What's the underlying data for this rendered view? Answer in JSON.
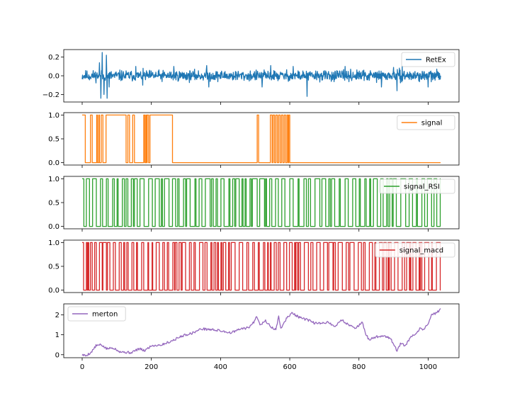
{
  "chart_data": [
    {
      "type": "line",
      "legend": "RetEx",
      "legend_placement": "upper right",
      "color": "#1f77b4",
      "series": [
        {
          "name": "RetEx",
          "kind": "noise",
          "seed": 11,
          "base": 0.0,
          "amp": 0.035,
          "spikes": [
            [
              50,
              0.14
            ],
            [
              54,
              -0.24
            ],
            [
              58,
              0.25
            ],
            [
              63,
              -0.2
            ],
            [
              70,
              0.22
            ],
            [
              72,
              -0.24
            ],
            [
              78,
              -0.12
            ],
            [
              155,
              0.1
            ],
            [
              175,
              -0.1
            ],
            [
              265,
              0.1
            ],
            [
              360,
              0.11
            ],
            [
              366,
              -0.12
            ],
            [
              520,
              -0.12
            ],
            [
              545,
              0.11
            ],
            [
              610,
              0.1
            ],
            [
              650,
              -0.22
            ],
            [
              760,
              0.1
            ],
            [
              865,
              -0.12
            ],
            [
              900,
              0.09
            ],
            [
              910,
              -0.16
            ],
            [
              925,
              0.1
            ],
            [
              1000,
              -0.12
            ]
          ]
        }
      ],
      "xlim": [
        0,
        1036
      ],
      "ylim": [
        -0.28,
        0.28
      ],
      "yticks": [
        -0.2,
        0.0,
        0.2
      ],
      "ytick_labels": [
        "−0.2",
        "0.0",
        "0.2"
      ],
      "xtick_labels_shown": false
    },
    {
      "type": "line",
      "legend": "signal",
      "legend_placement": "upper right",
      "color": "#ff7f0e",
      "series": [
        {
          "name": "signal",
          "kind": "step",
          "transitions": [
            [
              0,
              1
            ],
            [
              9,
              0
            ],
            [
              24,
              1
            ],
            [
              29,
              0
            ],
            [
              42,
              1
            ],
            [
              44,
              0
            ],
            [
              48,
              1
            ],
            [
              50,
              0
            ],
            [
              55,
              1
            ],
            [
              60,
              0
            ],
            [
              69,
              1
            ],
            [
              127,
              0
            ],
            [
              132,
              1
            ],
            [
              137,
              0
            ],
            [
              146,
              1
            ],
            [
              151,
              0
            ],
            [
              178,
              1
            ],
            [
              181,
              0
            ],
            [
              184,
              1
            ],
            [
              186,
              0
            ],
            [
              188,
              1
            ],
            [
              192,
              0
            ],
            [
              196,
              1
            ],
            [
              261,
              0
            ],
            [
              506,
              1
            ],
            [
              510,
              0
            ],
            [
              544,
              1
            ],
            [
              549,
              0
            ],
            [
              552,
              1
            ],
            [
              556,
              0
            ],
            [
              560,
              1
            ],
            [
              564,
              0
            ],
            [
              568,
              1
            ],
            [
              572,
              0
            ],
            [
              576,
              1
            ],
            [
              580,
              0
            ],
            [
              584,
              1
            ],
            [
              588,
              0
            ],
            [
              592,
              1
            ],
            [
              595,
              0
            ],
            [
              597,
              1
            ],
            [
              600,
              0
            ]
          ]
        }
      ],
      "xlim": [
        0,
        1036
      ],
      "ylim": [
        -0.05,
        1.05
      ],
      "yticks": [
        0.0,
        0.5,
        1.0
      ],
      "ytick_labels": [
        "0.0",
        "0.5",
        "1.0"
      ],
      "xtick_labels_shown": false
    },
    {
      "type": "line",
      "legend": "signal_RSI",
      "legend_placement": "upper right",
      "color": "#2ca02c",
      "series": [
        {
          "name": "signal_RSI",
          "kind": "binary",
          "seed": 23,
          "minrun": 3,
          "maxrun": 14
        }
      ],
      "xlim": [
        0,
        1036
      ],
      "ylim": [
        -0.05,
        1.05
      ],
      "yticks": [
        0.0,
        0.5,
        1.0
      ],
      "ytick_labels": [
        "0.0",
        "0.5",
        "1.0"
      ],
      "xtick_labels_shown": false
    },
    {
      "type": "line",
      "legend": "signal_macd",
      "legend_placement": "upper right",
      "color": "#d62728",
      "series": [
        {
          "name": "signal_macd",
          "kind": "binary",
          "seed": 37,
          "minrun": 2,
          "maxrun": 12
        }
      ],
      "xlim": [
        0,
        1036
      ],
      "ylim": [
        -0.05,
        1.05
      ],
      "yticks": [
        0.0,
        0.5,
        1.0
      ],
      "ytick_labels": [
        "0.0",
        "0.5",
        "1.0"
      ],
      "xtick_labels_shown": false
    },
    {
      "type": "line",
      "legend": "merton",
      "legend_placement": "upper left",
      "color": "#9467bd",
      "series": [
        {
          "name": "merton",
          "kind": "path",
          "seed": 5,
          "noise": 0.03,
          "anchors": [
            [
              0,
              0.0
            ],
            [
              10,
              -0.05
            ],
            [
              25,
              0.1
            ],
            [
              40,
              0.45
            ],
            [
              55,
              0.5
            ],
            [
              70,
              0.3
            ],
            [
              90,
              0.35
            ],
            [
              110,
              0.15
            ],
            [
              140,
              0.1
            ],
            [
              165,
              0.3
            ],
            [
              180,
              0.2
            ],
            [
              200,
              0.45
            ],
            [
              230,
              0.5
            ],
            [
              260,
              0.7
            ],
            [
              290,
              0.95
            ],
            [
              320,
              1.1
            ],
            [
              345,
              1.3
            ],
            [
              380,
              1.25
            ],
            [
              400,
              1.2
            ],
            [
              430,
              1.1
            ],
            [
              460,
              1.3
            ],
            [
              480,
              1.35
            ],
            [
              495,
              1.6
            ],
            [
              505,
              1.95
            ],
            [
              515,
              1.5
            ],
            [
              530,
              1.7
            ],
            [
              545,
              1.4
            ],
            [
              560,
              1.25
            ],
            [
              568,
              1.9
            ],
            [
              575,
              1.3
            ],
            [
              590,
              1.8
            ],
            [
              605,
              2.1
            ],
            [
              630,
              1.85
            ],
            [
              650,
              1.75
            ],
            [
              670,
              1.6
            ],
            [
              690,
              1.55
            ],
            [
              710,
              1.65
            ],
            [
              730,
              1.4
            ],
            [
              750,
              1.75
            ],
            [
              770,
              1.5
            ],
            [
              790,
              1.35
            ],
            [
              810,
              1.6
            ],
            [
              820,
              1.0
            ],
            [
              830,
              0.75
            ],
            [
              850,
              0.9
            ],
            [
              870,
              0.95
            ],
            [
              890,
              0.85
            ],
            [
              910,
              0.2
            ],
            [
              920,
              0.55
            ],
            [
              935,
              0.45
            ],
            [
              950,
              0.9
            ],
            [
              965,
              1.0
            ],
            [
              975,
              1.3
            ],
            [
              985,
              1.25
            ],
            [
              1000,
              1.55
            ],
            [
              1010,
              2.0
            ],
            [
              1025,
              2.1
            ],
            [
              1036,
              2.3
            ]
          ]
        }
      ],
      "xlim": [
        0,
        1036
      ],
      "ylim": [
        -0.15,
        2.55
      ],
      "yticks": [
        0,
        1,
        2
      ],
      "ytick_labels": [
        "0",
        "1",
        "2"
      ],
      "xticks": [
        0,
        200,
        400,
        600,
        800,
        1000
      ],
      "xtick_labels": [
        "0",
        "200",
        "400",
        "600",
        "800",
        "1000"
      ],
      "xtick_labels_shown": true
    }
  ]
}
